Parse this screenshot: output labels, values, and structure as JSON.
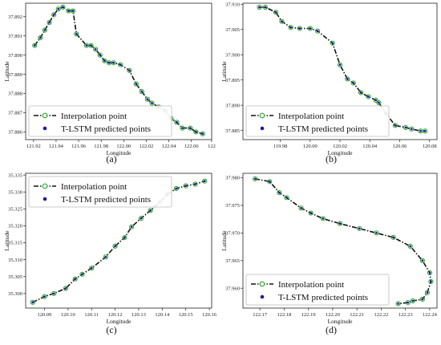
{
  "chart_data": [
    {
      "type": "line",
      "caption": "(a)",
      "xlabel": "Longitude",
      "ylabel": "Latitude",
      "xlim": [
        121.913,
        122.078
      ],
      "ylim": [
        37.8856,
        37.8927
      ],
      "xticks": [
        121.92,
        121.94,
        121.96,
        121.98,
        122.0,
        122.02,
        122.04,
        122.06
      ],
      "xtick_labels": [
        "121.92",
        "121.94",
        "121.96",
        "121.98",
        "122.00",
        "122.02",
        "122.04",
        "122.06",
        "122"
      ],
      "xtick_extra": 122.079,
      "yticks": [
        37.886,
        37.887,
        37.888,
        37.889,
        37.89,
        37.891,
        37.892
      ],
      "ytick_labels": [
        "37.886",
        "37.887",
        "37.888",
        "37.889",
        "37.890",
        "37.891",
        "37.892"
      ],
      "legend": {
        "placement": "lower-left",
        "entries": [
          "Interpolation point",
          "T-LSTM predicted points"
        ]
      },
      "series": [
        {
          "name": "Interpolation point",
          "x": [
            121.921,
            121.926,
            121.93,
            121.934,
            121.938,
            121.942,
            121.946,
            121.951,
            121.955,
            121.958,
            121.967,
            121.971,
            121.975,
            121.979,
            121.983,
            121.987,
            121.991,
            121.997,
            122.005,
            122.011,
            122.016,
            122.021,
            122.025,
            122.031,
            122.037,
            122.042,
            122.047,
            122.052,
            122.059,
            122.064,
            122.07
          ],
          "y": [
            37.8905,
            37.8909,
            37.8913,
            37.8917,
            37.8921,
            37.8924,
            37.8925,
            37.8923,
            37.8923,
            37.8911,
            37.8905,
            37.8905,
            37.8903,
            37.89,
            37.8897,
            37.8896,
            37.8896,
            37.8895,
            37.8892,
            37.8885,
            37.8881,
            37.8877,
            37.8875,
            37.8873,
            37.8871,
            37.8867,
            37.8865,
            37.8862,
            37.8862,
            37.886,
            37.8859
          ]
        },
        {
          "name": "T-LSTM predicted points",
          "x": [
            121.921,
            121.926,
            121.93,
            121.934,
            121.938,
            121.942,
            121.946,
            121.951,
            121.955,
            121.958,
            121.967,
            121.971,
            121.975,
            121.979,
            121.983,
            121.987,
            121.991,
            121.997,
            122.005,
            122.011,
            122.016,
            122.021,
            122.025,
            122.031,
            122.037,
            122.042,
            122.047,
            122.052,
            122.059,
            122.064,
            122.07
          ],
          "y": [
            37.8905,
            37.8909,
            37.8913,
            37.8917,
            37.8921,
            37.8924,
            37.8925,
            37.8923,
            37.8923,
            37.8911,
            37.8905,
            37.8905,
            37.8903,
            37.89,
            37.8897,
            37.8896,
            37.8896,
            37.8895,
            37.8892,
            37.8885,
            37.8881,
            37.8877,
            37.8875,
            37.8873,
            37.8871,
            37.8867,
            37.8865,
            37.8862,
            37.8862,
            37.886,
            37.8859
          ]
        }
      ]
    },
    {
      "type": "line",
      "caption": "(b)",
      "xlabel": "Longitude",
      "ylabel": "Latitude",
      "xlim": [
        119.955,
        120.085
      ],
      "ylim": [
        37.8832,
        37.9102
      ],
      "xticks": [
        119.98,
        120.0,
        120.02,
        120.04,
        120.06,
        120.08
      ],
      "xtick_labels": [
        "119.98",
        "120.00",
        "120.02",
        "120.04",
        "120.06",
        "120.08"
      ],
      "yticks": [
        37.885,
        37.89,
        37.895,
        37.9,
        37.905,
        37.91
      ],
      "ytick_labels": [
        "37.885",
        "37.890",
        "37.895",
        "37.900",
        "37.905",
        "37.910"
      ],
      "legend": {
        "placement": "lower-left",
        "entries": [
          "Interpolation point",
          "T-LSTM predicted points"
        ]
      },
      "series": [
        {
          "name": "Interpolation point",
          "x": [
            119.966,
            119.97,
            119.977,
            119.981,
            119.987,
            119.993,
            120.0,
            120.005,
            120.015,
            120.02,
            120.025,
            120.029,
            120.034,
            120.039,
            120.044,
            120.046,
            120.051,
            120.057,
            120.064,
            120.068,
            120.074,
            120.077
          ],
          "y": [
            37.9094,
            37.9094,
            37.9084,
            37.9066,
            37.9054,
            37.9052,
            37.9052,
            37.9047,
            37.9023,
            37.898,
            37.8952,
            37.8944,
            37.8925,
            37.8917,
            37.891,
            37.8905,
            37.8883,
            37.886,
            37.8856,
            37.8853,
            37.8849,
            37.8849
          ]
        },
        {
          "name": "T-LSTM predicted points",
          "x": [
            119.966,
            119.97,
            119.977,
            119.981,
            119.987,
            119.993,
            120.0,
            120.005,
            120.015,
            120.02,
            120.025,
            120.029,
            120.034,
            120.039,
            120.044,
            120.046,
            120.051,
            120.057,
            120.064,
            120.068,
            120.074,
            120.077
          ],
          "y": [
            37.9094,
            37.9094,
            37.9084,
            37.9066,
            37.9054,
            37.9052,
            37.9052,
            37.9047,
            37.9023,
            37.898,
            37.8952,
            37.8944,
            37.8925,
            37.8917,
            37.891,
            37.8905,
            37.8883,
            37.886,
            37.8856,
            37.8853,
            37.8849,
            37.8849
          ]
        }
      ]
    },
    {
      "type": "line",
      "caption": "(c)",
      "xlabel": "Longitude",
      "ylabel": "Latitude",
      "xlim": [
        120.082,
        120.161
      ],
      "ylim": [
        35.2957,
        35.3355
      ],
      "xticks": [
        120.09,
        120.1,
        120.11,
        120.12,
        120.13,
        120.14,
        120.15,
        120.16
      ],
      "xtick_labels": [
        "120.09",
        "120.10",
        "120.11",
        "120.12",
        "120.13",
        "120.14",
        "120.15",
        "120.16"
      ],
      "yticks": [
        35.3,
        35.305,
        35.31,
        35.315,
        35.32,
        35.325,
        35.33,
        35.335
      ],
      "ytick_labels": [
        "35.300",
        "35.305",
        "35.310",
        "35.315",
        "35.320",
        "35.325",
        "35.330",
        "35.335"
      ],
      "legend": {
        "placement": "top-left",
        "entries": [
          "Interpolation point",
          "T-LSTM predicted points"
        ]
      },
      "series": [
        {
          "name": "Interpolation point",
          "x": [
            120.085,
            120.09,
            120.094,
            120.099,
            120.103,
            120.106,
            120.11,
            120.116,
            120.12,
            120.124,
            120.127,
            120.131,
            120.135,
            120.139,
            120.142,
            120.146,
            120.15,
            120.154,
            120.158
          ],
          "y": [
            35.2974,
            35.2991,
            35.3,
            35.3015,
            35.3043,
            35.3057,
            35.3075,
            35.3108,
            35.314,
            35.3165,
            35.3197,
            35.3222,
            35.3245,
            35.327,
            35.3292,
            35.331,
            35.3318,
            35.3323,
            35.3332
          ]
        },
        {
          "name": "T-LSTM predicted points",
          "x": [
            120.085,
            120.09,
            120.094,
            120.099,
            120.103,
            120.106,
            120.11,
            120.116,
            120.12,
            120.124,
            120.127,
            120.131,
            120.135,
            120.139,
            120.142,
            120.146,
            120.15,
            120.154,
            120.158
          ],
          "y": [
            35.2974,
            35.2991,
            35.3,
            35.3015,
            35.3043,
            35.3057,
            35.3075,
            35.3108,
            35.314,
            35.3165,
            35.3197,
            35.3222,
            35.3245,
            35.327,
            35.3292,
            35.331,
            35.3318,
            35.3323,
            35.3332
          ]
        }
      ]
    },
    {
      "type": "line",
      "caption": "(d)",
      "xlabel": "Longitude",
      "ylabel": "Latitude",
      "xlim": [
        122.163,
        122.243
      ],
      "ylim": [
        37.9564,
        37.9808
      ],
      "xticks": [
        122.17,
        122.18,
        122.19,
        122.2,
        122.21,
        122.22,
        122.23,
        122.24
      ],
      "xtick_labels": [
        "122.17",
        "122.18",
        "122.19",
        "122.20",
        "122.21",
        "122.22",
        "122.23",
        "122.24"
      ],
      "yticks": [
        37.96,
        37.965,
        37.97,
        37.975,
        37.98
      ],
      "ytick_labels": [
        "37.960",
        "37.965",
        "37.970",
        "37.975",
        "37.980"
      ],
      "legend": {
        "placement": "lower-left",
        "entries": [
          "Interpolation point",
          "T-LSTM predicted points"
        ]
      },
      "series": [
        {
          "name": "Interpolation point",
          "x": [
            122.168,
            122.174,
            122.178,
            122.181,
            122.187,
            122.191,
            122.196,
            122.203,
            122.211,
            122.218,
            122.225,
            122.232,
            122.237,
            122.24,
            122.2405,
            122.239,
            122.237,
            122.233,
            122.231,
            122.227
          ],
          "y": [
            37.9798,
            37.9793,
            37.9773,
            37.9764,
            37.9745,
            37.9736,
            37.9726,
            37.9717,
            37.9708,
            37.97,
            37.9692,
            37.9676,
            37.965,
            37.9628,
            37.9612,
            37.9592,
            37.958,
            37.9577,
            37.9574,
            37.9572
          ]
        },
        {
          "name": "T-LSTM predicted points",
          "x": [
            122.168,
            122.174,
            122.178,
            122.181,
            122.187,
            122.191,
            122.196,
            122.203,
            122.211,
            122.218,
            122.225,
            122.232,
            122.237,
            122.24,
            122.2405,
            122.239,
            122.237,
            122.233,
            122.231,
            122.227
          ],
          "y": [
            37.9798,
            37.9793,
            37.9773,
            37.9764,
            37.9745,
            37.9736,
            37.9726,
            37.9717,
            37.9708,
            37.97,
            37.9692,
            37.9676,
            37.965,
            37.9628,
            37.9612,
            37.9592,
            37.958,
            37.9577,
            37.9574,
            37.9572
          ]
        }
      ]
    }
  ],
  "colors": {
    "interpolation_marker": "#2ca02c",
    "interpolation_line": "#111111",
    "predicted_marker": "#1a1aa8"
  }
}
